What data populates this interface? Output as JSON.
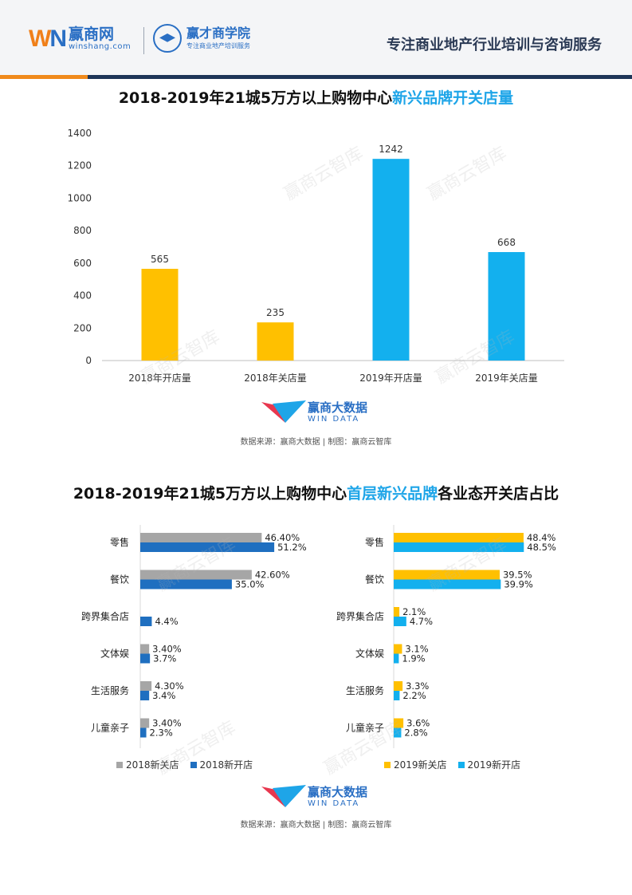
{
  "header": {
    "logo_mark_w": "W",
    "logo_mark_n": "N",
    "brand_cn": "赢商网",
    "brand_en": "winshang.com",
    "academy_cn": "赢才商学院",
    "academy_sub": "专注商业地产培训服务",
    "slogan": "专注商业地产行业培训与咨询服务"
  },
  "watermark": "赢商云智库",
  "chart1": {
    "title_main": "2018-2019年21城5万方以上购物中心",
    "title_highlight": "新兴品牌开关店量"
  },
  "chart2": {
    "title_main": "2018-2019年21城5万方以上购物中心",
    "title_highlight": "首层新兴品牌",
    "title_tail": "各业态开关店占比"
  },
  "windata": {
    "cn": "赢商大数据",
    "en": "WIN DATA"
  },
  "source": "数据来源：赢商大数据 | 制图：赢商云智库",
  "chart_data": [
    {
      "type": "bar",
      "categories": [
        "2018年开店量",
        "2018年关店量",
        "2019年开店量",
        "2019年关店量"
      ],
      "values": [
        565,
        235,
        1242,
        668
      ],
      "data_labels": [
        "565",
        "235",
        "1242",
        "668"
      ],
      "colors": [
        "#ffc000",
        "#ffc000",
        "#13b0ee",
        "#13b0ee"
      ],
      "ylim": [
        0,
        1400
      ],
      "yticks": [
        "0",
        "200",
        "400",
        "600",
        "800",
        "1000",
        "1200",
        "1400"
      ],
      "grid": false
    },
    {
      "type": "bar",
      "orientation": "horizontal",
      "categories": [
        "零售",
        "餐饮",
        "跨界集合店",
        "文体娱",
        "生活服务",
        "儿童亲子"
      ],
      "series": [
        {
          "name": "2018新关店",
          "color": "#a6a6a6",
          "values": [
            46.4,
            42.6,
            null,
            3.4,
            4.3,
            3.4
          ],
          "labels": [
            "46.40%",
            "42.60%",
            "",
            "3.40%",
            "4.30%",
            "3.40%"
          ]
        },
        {
          "name": "2018新开店",
          "color": "#1f6fc0",
          "values": [
            51.2,
            35.0,
            4.4,
            3.7,
            3.4,
            2.3
          ],
          "labels": [
            "51.2%",
            "35.0%",
            "4.4%",
            "3.7%",
            "3.4%",
            "2.3%"
          ]
        }
      ],
      "xlim": [
        0,
        60
      ],
      "legend": "bottom"
    },
    {
      "type": "bar",
      "orientation": "horizontal",
      "categories": [
        "零售",
        "餐饮",
        "跨界集合店",
        "文体娱",
        "生活服务",
        "儿童亲子"
      ],
      "series": [
        {
          "name": "2019新关店",
          "color": "#ffc000",
          "values": [
            48.4,
            39.5,
            2.1,
            3.1,
            3.3,
            3.6
          ],
          "labels": [
            "48.4%",
            "39.5%",
            "2.1%",
            "3.1%",
            "3.3%",
            "3.6%"
          ]
        },
        {
          "name": "2019新开店",
          "color": "#13b0ee",
          "values": [
            48.5,
            39.9,
            4.7,
            1.9,
            2.2,
            2.8
          ],
          "labels": [
            "48.5%",
            "39.9%",
            "4.7%",
            "1.9%",
            "2.2%",
            "2.8%"
          ]
        }
      ],
      "xlim": [
        0,
        60
      ],
      "legend": "bottom"
    }
  ]
}
